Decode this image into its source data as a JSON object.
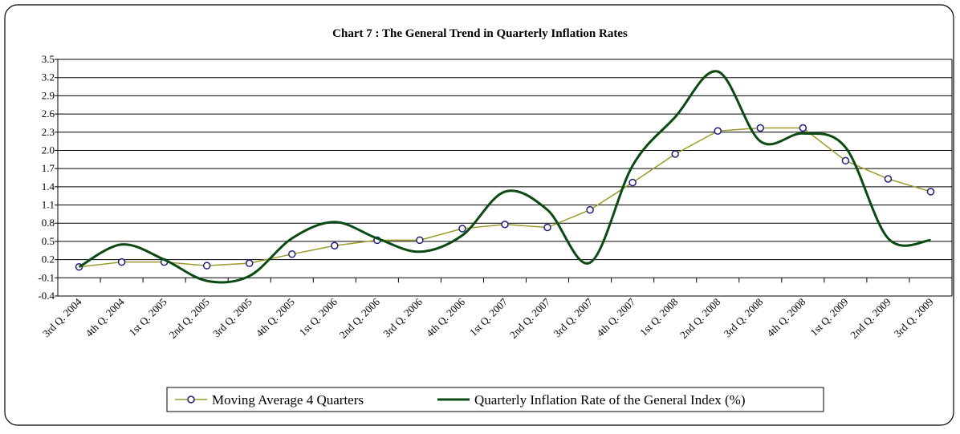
{
  "chart_data": {
    "type": "line",
    "title": "Chart 7 : The General Trend in Quarterly Inflation Rates",
    "categories": [
      "3rd Q. 2004",
      "4th Q. 2004",
      "1st Q. 2005",
      "2nd Q. 2005",
      "3rd Q. 2005",
      "4th Q. 2005",
      "1st Q. 2006",
      "2nd Q. 2006",
      "3rd Q. 2006",
      "4th Q. 2006",
      "1st Q. 2007",
      "2nd Q. 2007",
      "3rd Q. 2007",
      "4th Q. 2007",
      "1st Q. 2008",
      "2nd Q. 2008",
      "3rd Q. 2008",
      "4th Q. 2008",
      "1st Q. 2009",
      "2nd Q. 2009",
      "3rd Q. 2009"
    ],
    "series": [
      {
        "name": "Moving Average 4 Quarters",
        "color": "#9c9a2a",
        "marker_color": "#1f1f7a",
        "smooth": false,
        "values": [
          0.08,
          0.16,
          0.16,
          0.1,
          0.14,
          0.29,
          0.43,
          0.52,
          0.52,
          0.71,
          0.78,
          0.73,
          1.02,
          1.47,
          1.94,
          2.32,
          2.37,
          2.37,
          1.83,
          1.53,
          1.32
        ]
      },
      {
        "name": "Quarterly Inflation Rate of the General Index (%)",
        "color": "#0b4a12",
        "smooth": true,
        "values": [
          0.08,
          0.45,
          0.2,
          -0.15,
          -0.07,
          0.55,
          0.82,
          0.55,
          0.33,
          0.6,
          1.32,
          1.02,
          0.15,
          1.75,
          2.55,
          3.3,
          2.15,
          2.28,
          2.05,
          0.55,
          0.52
        ]
      }
    ],
    "ylim": [
      -0.4,
      3.5
    ],
    "yticks": [
      -0.4,
      -0.1,
      0.2,
      0.5,
      0.8,
      1.1,
      1.4,
      1.7,
      {
        "value": 2,
        "label": "2.0"
      },
      2.3,
      2.6,
      2.9,
      3.2,
      3.5
    ],
    "grid": true,
    "legend": "bottom"
  }
}
